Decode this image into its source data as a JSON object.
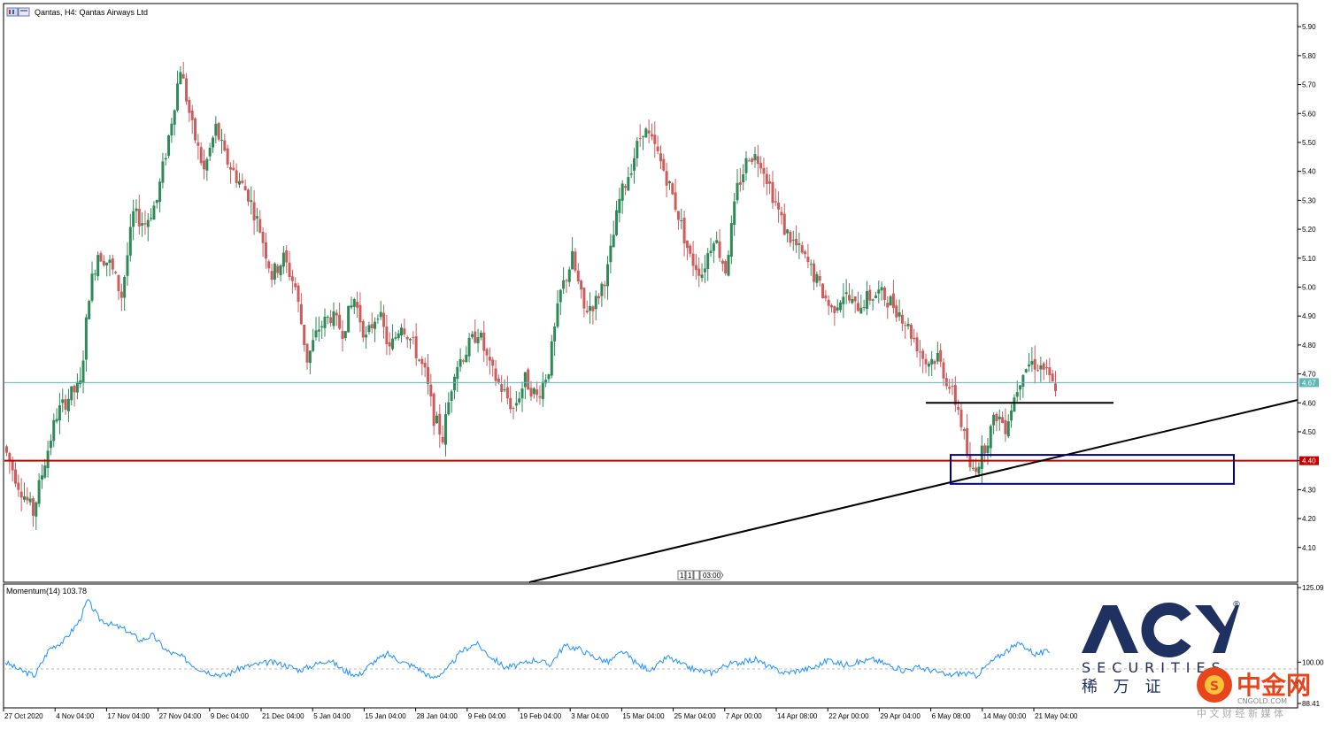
{
  "window": {
    "symbol_title": "Qantas, H4:  Qantas Airways Ltd",
    "indicator_title": "Momentum(14) 103.78",
    "scroll_marker": "03:00"
  },
  "colors": {
    "bull": "#2e8b57",
    "bear": "#cd5c5c",
    "current_price_line": "#5fb8b8",
    "support_line": "#c00000",
    "trendline": "#000000",
    "zone_box": "#000080",
    "momentum_line": "#1e90ff"
  },
  "price_axis": {
    "ticks": [
      "5.90",
      "5.80",
      "5.70",
      "5.60",
      "5.50",
      "5.40",
      "5.30",
      "5.20",
      "5.10",
      "5.00",
      "4.90",
      "4.80",
      "4.70",
      "4.60",
      "4.50",
      "4.40",
      "4.30",
      "4.20",
      "4.10"
    ],
    "current_tag": "4.67",
    "support_tag": "4.40"
  },
  "momentum_axis": {
    "ticks": [
      "125.09",
      "100.00",
      "88.41"
    ]
  },
  "time_axis": {
    "labels": [
      "27 Oct 2020",
      "4 Nov 04:00",
      "17 Nov 04:00",
      "27 Nov 04:00",
      "9 Dec 04:00",
      "21 Dec 04:00",
      "5 Jan 04:00",
      "15 Jan 04:00",
      "28 Jan 04:00",
      "9 Feb 04:00",
      "19 Feb 04:00",
      "3 Mar 04:00",
      "15 Mar 04:00",
      "25 Mar 04:00",
      "7 Apr 00:00",
      "14 Apr 08:00",
      "22 Apr 00:00",
      "29 Apr 04:00",
      "6 May 08:00",
      "14 May 00:00",
      "21 May 04:00"
    ]
  },
  "watermark": {
    "brand": "ACY",
    "registered": "®",
    "securities": "SECURITIES",
    "cn_brand": "稀 万 证",
    "site_cn": "中金网",
    "site_url": "CNGOLD.COM",
    "site_tag": "中 文 财 经 新 媒 体"
  },
  "chart_data": {
    "type": "candlestick",
    "title": "Qantas, H4:  Qantas Airways Ltd",
    "ylim": [
      4.0,
      5.98
    ],
    "current_price": 4.67,
    "support_level": 4.4,
    "resistance_segment_price": 4.6,
    "trendline": {
      "from_price": 3.9,
      "to_price": 4.61
    },
    "zone": {
      "low": 4.32,
      "high": 4.42
    },
    "price_path": [
      [
        0,
        4.45
      ],
      [
        10,
        4.32
      ],
      [
        20,
        4.22
      ],
      [
        28,
        4.4
      ],
      [
        36,
        4.56
      ],
      [
        44,
        4.62
      ],
      [
        52,
        4.66
      ],
      [
        58,
        4.98
      ],
      [
        64,
        5.12
      ],
      [
        72,
        5.08
      ],
      [
        80,
        4.97
      ],
      [
        88,
        5.25
      ],
      [
        96,
        5.22
      ],
      [
        104,
        5.3
      ],
      [
        112,
        5.52
      ],
      [
        120,
        5.76
      ],
      [
        128,
        5.55
      ],
      [
        136,
        5.4
      ],
      [
        144,
        5.55
      ],
      [
        150,
        5.45
      ],
      [
        158,
        5.38
      ],
      [
        166,
        5.32
      ],
      [
        174,
        5.2
      ],
      [
        182,
        5.04
      ],
      [
        190,
        5.1
      ],
      [
        198,
        5.0
      ],
      [
        206,
        4.75
      ],
      [
        214,
        4.86
      ],
      [
        222,
        4.9
      ],
      [
        230,
        4.85
      ],
      [
        238,
        4.96
      ],
      [
        246,
        4.82
      ],
      [
        254,
        4.92
      ],
      [
        262,
        4.78
      ],
      [
        270,
        4.88
      ],
      [
        278,
        4.8
      ],
      [
        286,
        4.7
      ],
      [
        292,
        4.55
      ],
      [
        298,
        4.48
      ],
      [
        306,
        4.72
      ],
      [
        314,
        4.78
      ],
      [
        322,
        4.85
      ],
      [
        330,
        4.72
      ],
      [
        338,
        4.65
      ],
      [
        346,
        4.58
      ],
      [
        354,
        4.68
      ],
      [
        362,
        4.62
      ],
      [
        370,
        4.72
      ],
      [
        378,
        4.98
      ],
      [
        386,
        5.1
      ],
      [
        394,
        4.92
      ],
      [
        402,
        4.95
      ],
      [
        410,
        5.06
      ],
      [
        418,
        5.3
      ],
      [
        426,
        5.42
      ],
      [
        434,
        5.55
      ],
      [
        442,
        5.48
      ],
      [
        450,
        5.38
      ],
      [
        458,
        5.25
      ],
      [
        466,
        5.1
      ],
      [
        474,
        5.05
      ],
      [
        482,
        5.18
      ],
      [
        490,
        5.06
      ],
      [
        498,
        5.34
      ],
      [
        506,
        5.46
      ],
      [
        514,
        5.44
      ],
      [
        522,
        5.32
      ],
      [
        530,
        5.2
      ],
      [
        538,
        5.14
      ],
      [
        546,
        5.08
      ],
      [
        554,
        5.0
      ],
      [
        562,
        4.92
      ],
      [
        570,
        4.98
      ],
      [
        578,
        4.93
      ],
      [
        586,
        4.96
      ],
      [
        594,
        4.98
      ],
      [
        602,
        4.95
      ],
      [
        610,
        4.9
      ],
      [
        618,
        4.82
      ],
      [
        626,
        4.74
      ],
      [
        634,
        4.76
      ],
      [
        640,
        4.68
      ],
      [
        648,
        4.58
      ],
      [
        652,
        4.48
      ],
      [
        656,
        4.36
      ],
      [
        662,
        4.4
      ],
      [
        668,
        4.48
      ],
      [
        674,
        4.56
      ],
      [
        680,
        4.52
      ],
      [
        686,
        4.62
      ],
      [
        692,
        4.72
      ],
      [
        698,
        4.74
      ],
      [
        706,
        4.72
      ],
      [
        712,
        4.66
      ]
    ],
    "momentum": [
      [
        0,
        100
      ],
      [
        10,
        97
      ],
      [
        20,
        95
      ],
      [
        30,
        105
      ],
      [
        40,
        108
      ],
      [
        50,
        115
      ],
      [
        56,
        123
      ],
      [
        64,
        116
      ],
      [
        72,
        114
      ],
      [
        82,
        112
      ],
      [
        92,
        108
      ],
      [
        100,
        110
      ],
      [
        110,
        104
      ],
      [
        120,
        102
      ],
      [
        130,
        98
      ],
      [
        140,
        96
      ],
      [
        150,
        95
      ],
      [
        160,
        98
      ],
      [
        170,
        99
      ],
      [
        180,
        100
      ],
      [
        190,
        99
      ],
      [
        200,
        97
      ],
      [
        210,
        99
      ],
      [
        220,
        101
      ],
      [
        230,
        97
      ],
      [
        240,
        95
      ],
      [
        250,
        100
      ],
      [
        260,
        103
      ],
      [
        270,
        100
      ],
      [
        280,
        98
      ],
      [
        290,
        94
      ],
      [
        300,
        97
      ],
      [
        310,
        104
      ],
      [
        320,
        107
      ],
      [
        330,
        102
      ],
      [
        340,
        98
      ],
      [
        350,
        99
      ],
      [
        360,
        101
      ],
      [
        370,
        99
      ],
      [
        380,
        106
      ],
      [
        390,
        105
      ],
      [
        400,
        102
      ],
      [
        410,
        100
      ],
      [
        420,
        104
      ],
      [
        430,
        99
      ],
      [
        440,
        97
      ],
      [
        450,
        102
      ],
      [
        460,
        99
      ],
      [
        470,
        97
      ],
      [
        480,
        96
      ],
      [
        490,
        99
      ],
      [
        500,
        100
      ],
      [
        510,
        101
      ],
      [
        520,
        98
      ],
      [
        530,
        96
      ],
      [
        540,
        97
      ],
      [
        550,
        98
      ],
      [
        560,
        101
      ],
      [
        570,
        99
      ],
      [
        580,
        100
      ],
      [
        590,
        101
      ],
      [
        600,
        99
      ],
      [
        610,
        97
      ],
      [
        620,
        98
      ],
      [
        630,
        97
      ],
      [
        640,
        95
      ],
      [
        650,
        96
      ],
      [
        660,
        95
      ],
      [
        670,
        100
      ],
      [
        680,
        104
      ],
      [
        690,
        107
      ],
      [
        700,
        103
      ],
      [
        710,
        104
      ]
    ]
  }
}
